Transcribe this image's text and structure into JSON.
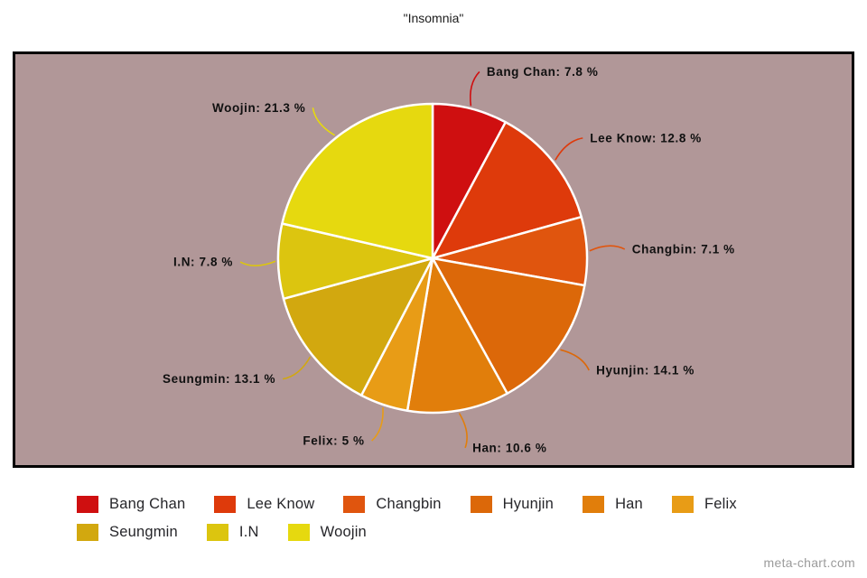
{
  "chart_data": {
    "type": "pie",
    "title": "\"Insomnia\"",
    "label_format": "{name}: {value} %",
    "legend_position": "bottom",
    "direction": "clockwise",
    "start_angle_deg": 0,
    "background": "#b19798",
    "slice_border_color": "#ffffff",
    "series": [
      {
        "name": "Bang Chan",
        "value": 7.8,
        "color": "#cf0f10"
      },
      {
        "name": "Lee Know",
        "value": 12.8,
        "color": "#de3a0b"
      },
      {
        "name": "Changbin",
        "value": 7.1,
        "color": "#e0550e"
      },
      {
        "name": "Hyunjin",
        "value": 14.1,
        "color": "#dc6809"
      },
      {
        "name": "Han",
        "value": 10.6,
        "color": "#e17e0b"
      },
      {
        "name": "Felix",
        "value": 5,
        "color": "#e89c16"
      },
      {
        "name": "Seungmin",
        "value": 13.1,
        "color": "#d2a80f"
      },
      {
        "name": "I.N",
        "value": 7.8,
        "color": "#dcc50f"
      },
      {
        "name": "Woojin",
        "value": 21.3,
        "color": "#e6d90f"
      }
    ]
  },
  "watermark": "meta-chart.com"
}
